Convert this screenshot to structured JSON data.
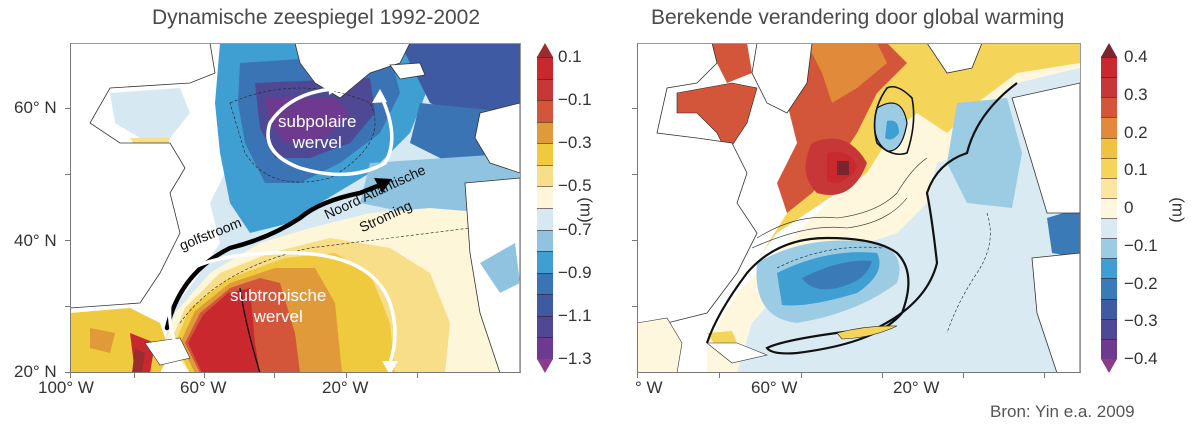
{
  "left_panel": {
    "title": "Dynamische zeespiegel 1992-2002",
    "y_ticks": [
      "60° N",
      "40° N",
      "20° N"
    ],
    "x_ticks": [
      "100° W",
      "60° W",
      "20° W"
    ],
    "labels": {
      "subpolar": [
        "subpolaire",
        "wervel"
      ],
      "subtropical": [
        "subtropische",
        "wervel"
      ],
      "gulfstream": "golfstroom",
      "nac": [
        "Noord Atlantische",
        "Stroming"
      ]
    },
    "colorbar": {
      "tick_labels": [
        "0.1",
        "−0.1",
        "−0.3",
        "−0.5",
        "−0.7",
        "−0.9",
        "−1.1",
        "−1.3"
      ],
      "unit": "(m)",
      "colors": [
        "#9b2d32",
        "#c9282e",
        "#c73738",
        "#d4563a",
        "#e09a3a",
        "#efc93e",
        "#f8de88",
        "#fdf6d9",
        "#d6e8f1",
        "#90c3df",
        "#3f9ed2",
        "#3a74b4",
        "#3e5aa2",
        "#4f4894",
        "#6e3a8f",
        "#8b3b8a"
      ]
    }
  },
  "right_panel": {
    "title": "Berekende verandering door global warming",
    "x_ticks": [
      "° W",
      "60° W",
      "20° W"
    ],
    "colorbar": {
      "tick_labels": [
        "0.4",
        "0.3",
        "0.2",
        "0.1",
        "0",
        "−0.1",
        "−0.2",
        "−0.3",
        "−0.4"
      ],
      "unit": "(m)",
      "colors": [
        "#7a2630",
        "#c9282e",
        "#c73738",
        "#d4563a",
        "#e08a3a",
        "#efc340",
        "#f4d55a",
        "#fae6a0",
        "#fef7de",
        "#d9eaf2",
        "#9ccbe4",
        "#3f9ed2",
        "#3a7ab7",
        "#3e5aa2",
        "#4f4894",
        "#6e3a8f",
        "#8b3b8a"
      ]
    }
  },
  "source": "Bron: Yin e.a. 2009"
}
